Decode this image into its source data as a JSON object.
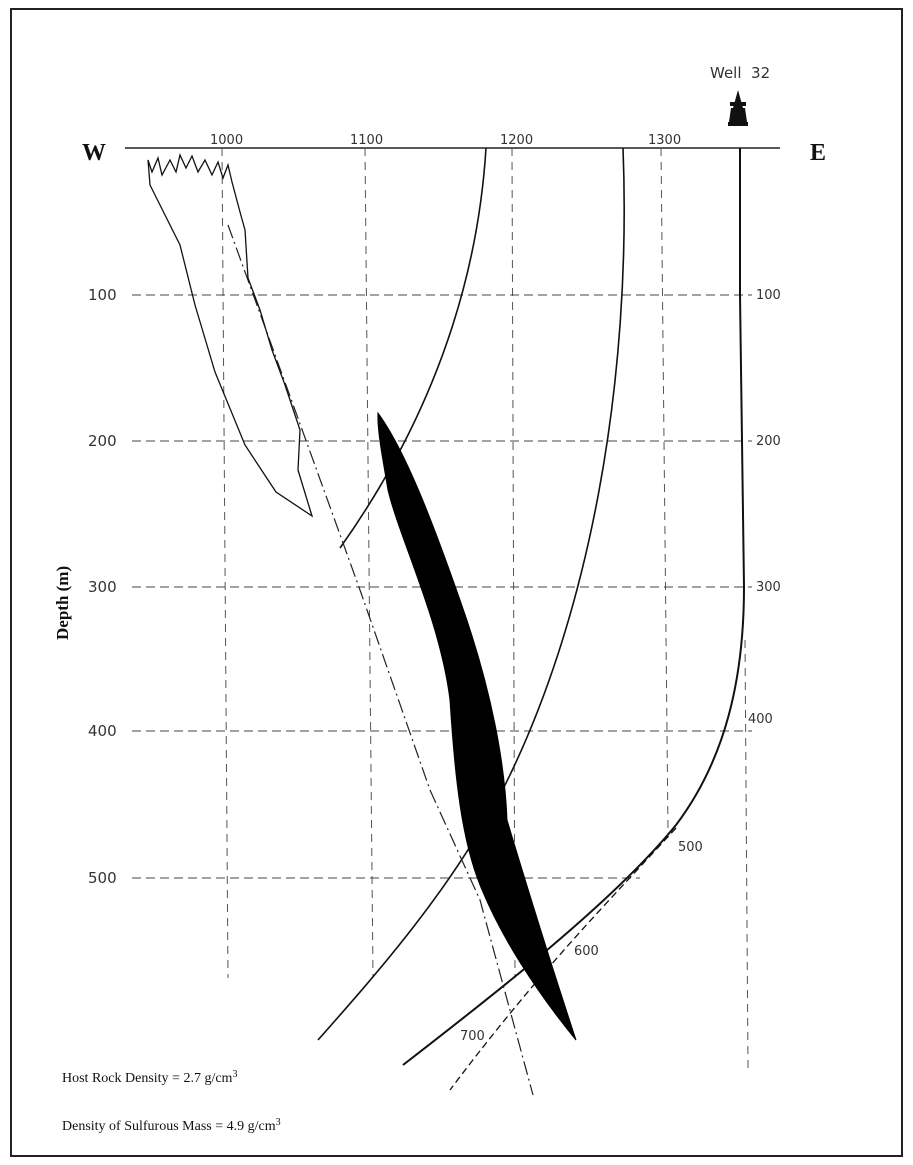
{
  "well": {
    "label": "Well  32",
    "icon": "well-derrick-icon"
  },
  "directions": {
    "west": "W",
    "east": "E"
  },
  "axis": {
    "y_label": "Depth (m)",
    "x_ticks": [
      "1000",
      "1100",
      "1200",
      "1300"
    ],
    "depth_ticks": [
      "100",
      "200",
      "300",
      "400",
      "500"
    ],
    "well_ticks": [
      "100",
      "200",
      "300",
      "400",
      "500",
      "600",
      "700"
    ]
  },
  "notes": {
    "host_prefix": "Host Rock Density = 2.7 g/cm",
    "host_sup": "3",
    "mass_prefix": "Density of Sulfurous Mass = 4.9 g/cm",
    "mass_sup": "3"
  }
}
